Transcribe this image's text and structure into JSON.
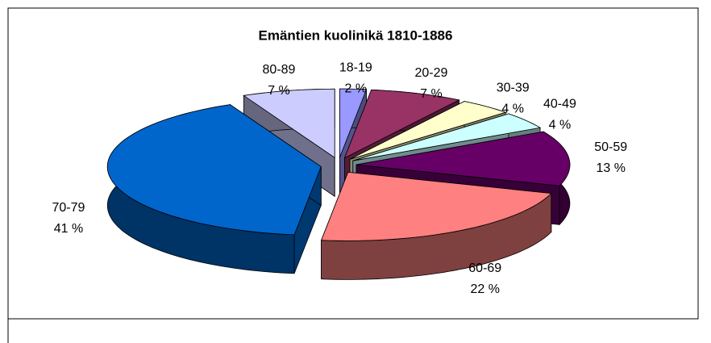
{
  "chart_data": {
    "type": "pie",
    "title": "Emäntien kuolinikä 1810-1886",
    "categories": [
      "18-19",
      "20-29",
      "30-39",
      "40-49",
      "50-59",
      "60-69",
      "70-79",
      "80-89"
    ],
    "values": [
      2,
      7,
      4,
      4,
      13,
      22,
      41,
      7
    ],
    "value_labels": [
      "2 %",
      "7 %",
      "4 %",
      "4 %",
      "13 %",
      "22 %",
      "41 %",
      "7 %"
    ],
    "colors": [
      "#9999ff",
      "#993366",
      "#ffffcc",
      "#ccffff",
      "#660066",
      "#ff8080",
      "#0066cc",
      "#ccccff"
    ]
  }
}
